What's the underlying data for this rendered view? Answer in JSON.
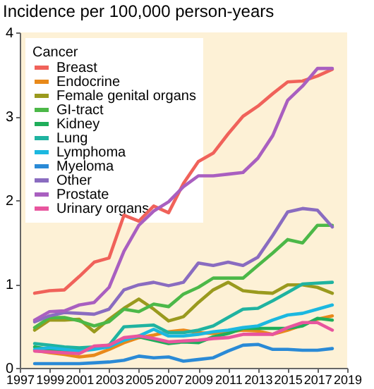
{
  "chart_data": {
    "type": "line",
    "title": "Incidence per 100,000 person-years",
    "legend_title": "Cancer",
    "legend": "top left",
    "grid": false,
    "line_style": "solid",
    "marker": "none",
    "x": [
      1998,
      1999,
      2000,
      2001,
      2002,
      2003,
      2004,
      2005,
      2006,
      2007,
      2008,
      2009,
      2010,
      2011,
      2012,
      2013,
      2014,
      2015,
      2016,
      2017,
      2018
    ],
    "xlim": [
      1997,
      2019
    ],
    "xticks": [
      1997,
      1999,
      2001,
      2003,
      2005,
      2007,
      2009,
      2011,
      2013,
      2015,
      2017,
      2019
    ],
    "ylim": [
      0,
      4
    ],
    "yticks": [
      0,
      1,
      2,
      3,
      4
    ],
    "series": [
      {
        "name": "Breast",
        "color": "#f0625a",
        "values": [
          0.89,
          0.92,
          0.93,
          1.09,
          1.26,
          1.31,
          1.82,
          1.75,
          1.93,
          1.85,
          2.2,
          2.46,
          2.56,
          2.79,
          3.0,
          3.12,
          3.27,
          3.41,
          3.42,
          3.48,
          3.56
        ]
      },
      {
        "name": "Endocrine",
        "color": "#e8891a",
        "values": [
          0.21,
          0.18,
          0.16,
          0.13,
          0.15,
          0.22,
          0.3,
          0.36,
          0.39,
          0.43,
          0.45,
          0.42,
          0.41,
          0.43,
          0.45,
          0.44,
          0.4,
          0.45,
          0.51,
          0.58,
          0.62
        ]
      },
      {
        "name": "Female genital organs",
        "color": "#9a9a1e",
        "values": [
          0.45,
          0.57,
          0.57,
          0.58,
          0.43,
          0.58,
          0.71,
          0.82,
          0.7,
          0.56,
          0.61,
          0.78,
          0.93,
          1.02,
          0.92,
          0.9,
          0.89,
          0.99,
          0.99,
          0.96,
          0.89
        ]
      },
      {
        "name": "GI-tract",
        "color": "#4cb848",
        "values": [
          0.48,
          0.6,
          0.6,
          0.56,
          0.5,
          0.55,
          0.7,
          0.67,
          0.76,
          0.73,
          0.88,
          0.96,
          1.07,
          1.07,
          1.07,
          1.22,
          1.37,
          1.53,
          1.49,
          1.7,
          1.7
        ]
      },
      {
        "name": "Kidney",
        "color": "#1fae5a",
        "values": [
          0.25,
          0.22,
          0.2,
          0.22,
          0.24,
          0.27,
          0.35,
          0.37,
          0.33,
          0.29,
          0.31,
          0.3,
          0.37,
          0.41,
          0.47,
          0.47,
          0.47,
          0.47,
          0.5,
          0.59,
          0.57
        ]
      },
      {
        "name": "Lung",
        "color": "#1fb3a0",
        "values": [
          0.29,
          0.27,
          0.25,
          0.24,
          0.25,
          0.27,
          0.49,
          0.5,
          0.51,
          0.42,
          0.42,
          0.45,
          0.5,
          0.6,
          0.7,
          0.71,
          0.8,
          0.9,
          1.0,
          1.01,
          1.02
        ]
      },
      {
        "name": "Lymphoma",
        "color": "#1cb8e0",
        "values": [
          0.22,
          0.24,
          0.22,
          0.2,
          0.22,
          0.25,
          0.33,
          0.38,
          0.46,
          0.38,
          0.38,
          0.4,
          0.43,
          0.45,
          0.48,
          0.5,
          0.57,
          0.63,
          0.65,
          0.7,
          0.75
        ]
      },
      {
        "name": "Myeloma",
        "color": "#2a8ad6",
        "values": [
          0.05,
          0.05,
          0.05,
          0.05,
          0.06,
          0.07,
          0.09,
          0.14,
          0.12,
          0.13,
          0.08,
          0.1,
          0.12,
          0.2,
          0.27,
          0.28,
          0.22,
          0.22,
          0.21,
          0.21,
          0.23
        ]
      },
      {
        "name": "Other",
        "color": "#8a6cc0",
        "values": [
          0.55,
          0.62,
          0.66,
          0.65,
          0.64,
          0.7,
          0.93,
          0.99,
          1.02,
          0.98,
          1.02,
          1.25,
          1.22,
          1.26,
          1.22,
          1.32,
          1.58,
          1.86,
          1.9,
          1.88,
          1.68
        ]
      },
      {
        "name": "Prostate",
        "color": "#a95fc0",
        "values": [
          0.57,
          0.67,
          0.68,
          0.75,
          0.78,
          0.96,
          1.39,
          1.7,
          1.87,
          1.98,
          2.16,
          2.29,
          2.29,
          2.31,
          2.33,
          2.5,
          2.77,
          3.19,
          3.36,
          3.57,
          3.57
        ]
      },
      {
        "name": "Urinary organs",
        "color": "#e8559e",
        "values": [
          0.2,
          0.19,
          0.18,
          0.17,
          0.26,
          0.27,
          0.36,
          0.38,
          0.35,
          0.31,
          0.32,
          0.33,
          0.35,
          0.36,
          0.4,
          0.4,
          0.4,
          0.48,
          0.54,
          0.54,
          0.45
        ]
      }
    ]
  }
}
